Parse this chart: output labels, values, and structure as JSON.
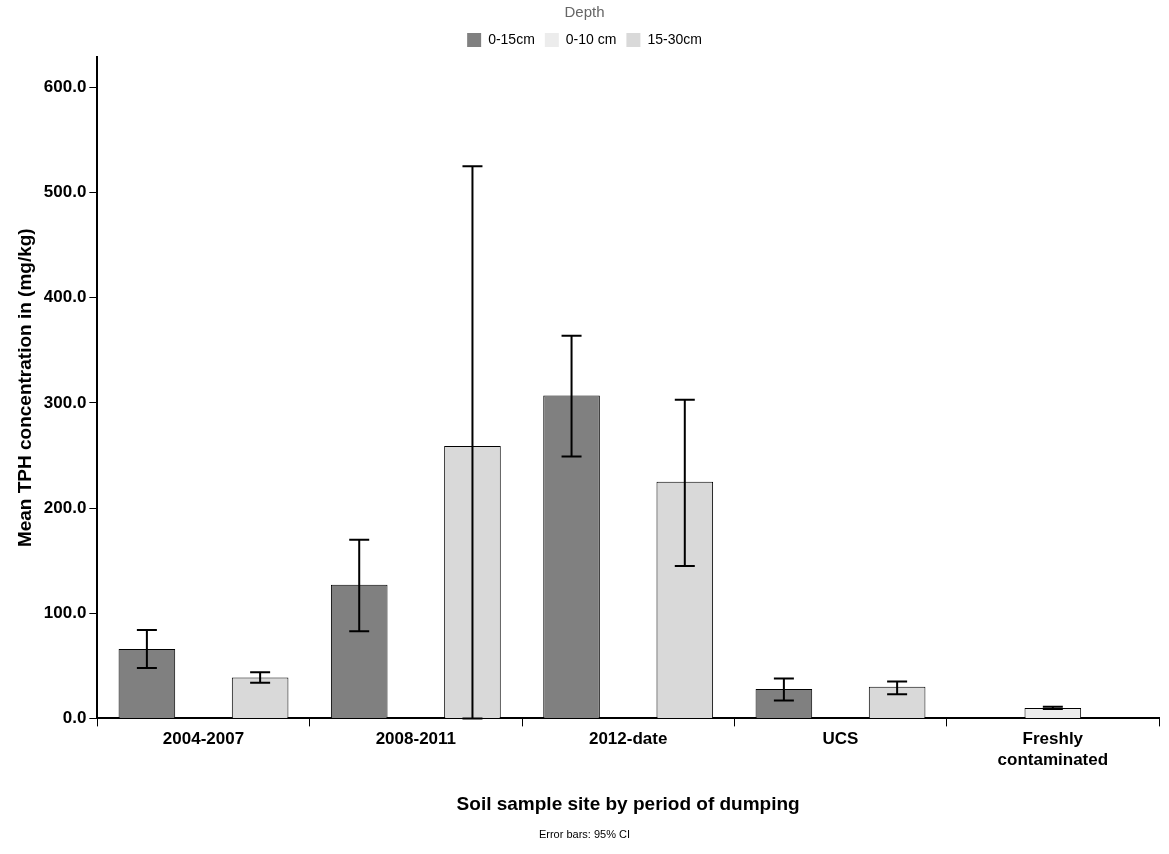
{
  "chart_data": {
    "type": "bar",
    "xlabel": "Soil sample site by period of dumping",
    "ylabel": "Mean TPH concentration in (mg/kg)",
    "legend_title": "Depth",
    "legend": "top",
    "categories": [
      "2004-2007",
      "2008-2011",
      "2012-date",
      "UCS",
      "Freshly contaminated"
    ],
    "series": [
      {
        "name": "0-15cm",
        "color": "#808080",
        "values": [
          66,
          127,
          307,
          28,
          null
        ],
        "errors": [
          [
            48,
            84
          ],
          [
            83,
            170
          ],
          [
            249,
            364
          ],
          [
            17,
            38
          ],
          null
        ]
      },
      {
        "name": "0-10 cm",
        "color": "#ececec",
        "values": [
          null,
          null,
          null,
          null,
          10
        ],
        "errors": [
          null,
          null,
          null,
          null,
          [
            9,
            11
          ]
        ]
      },
      {
        "name": "15-30cm",
        "color": "#d9d9d9",
        "values": [
          39,
          259,
          225,
          30,
          null
        ],
        "errors": [
          [
            34,
            44
          ],
          [
            0,
            525
          ],
          [
            145,
            303
          ],
          [
            23,
            35
          ],
          null
        ]
      }
    ],
    "ylim": [
      0,
      629
    ],
    "yticks": [
      {
        "value": 0,
        "label": "0.0"
      },
      {
        "value": 100,
        "label": "100.0"
      },
      {
        "value": 200,
        "label": "200.0"
      },
      {
        "value": 300,
        "label": "300.0"
      },
      {
        "value": 400,
        "label": "400.0"
      },
      {
        "value": 500,
        "label": "500.0"
      },
      {
        "value": 600,
        "label": "600.0"
      }
    ],
    "annotations": [
      "Error bars: 95% CI"
    ]
  }
}
